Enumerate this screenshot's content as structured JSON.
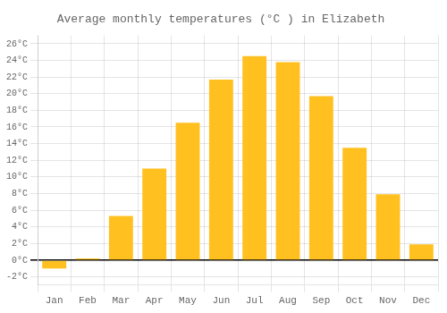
{
  "chart_data": {
    "type": "bar",
    "title": "Average monthly temperatures (°C ) in Elizabeth",
    "categories": [
      "Jan",
      "Feb",
      "Mar",
      "Apr",
      "May",
      "Jun",
      "Jul",
      "Aug",
      "Sep",
      "Oct",
      "Nov",
      "Dec"
    ],
    "values": [
      -1.0,
      0.2,
      5.3,
      11.0,
      16.5,
      21.7,
      24.5,
      23.8,
      19.7,
      13.5,
      7.9,
      1.9
    ],
    "color": "#FFC020",
    "ylim": [
      -3,
      27
    ],
    "yticks": [
      {
        "value": -2,
        "label": "-2°C"
      },
      {
        "value": 0,
        "label": "0°C"
      },
      {
        "value": 2,
        "label": "2°C"
      },
      {
        "value": 4,
        "label": "4°C"
      },
      {
        "value": 6,
        "label": "6°C"
      },
      {
        "value": 8,
        "label": "8°C"
      },
      {
        "value": 10,
        "label": "10°C"
      },
      {
        "value": 12,
        "label": "12°C"
      },
      {
        "value": 14,
        "label": "14°C"
      },
      {
        "value": 16,
        "label": "16°C"
      },
      {
        "value": 18,
        "label": "18°C"
      },
      {
        "value": 20,
        "label": "20°C"
      },
      {
        "value": 22,
        "label": "22°C"
      },
      {
        "value": 24,
        "label": "24°C"
      },
      {
        "value": 26,
        "label": "26°C"
      }
    ],
    "grid": true
  }
}
